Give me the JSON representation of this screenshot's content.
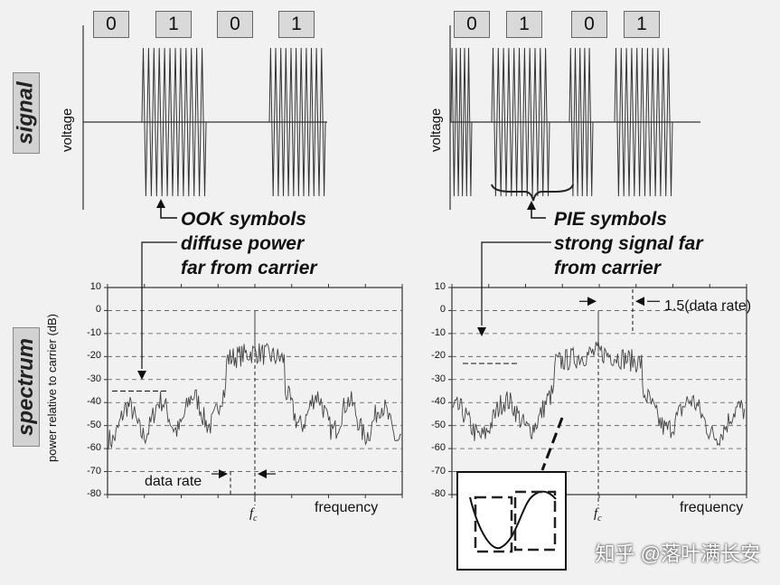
{
  "row_labels": {
    "signal": "signal",
    "spectrum": "spectrum"
  },
  "signal_panels": [
    {
      "bits": [
        "0",
        "1",
        "0",
        "1"
      ],
      "ylabel": "voltage",
      "callout": [
        "OOK symbols",
        "diffuse power",
        "far from carrier"
      ]
    },
    {
      "bits": [
        "0",
        "1",
        "0",
        "1"
      ],
      "ylabel": "voltage",
      "callout": [
        "PIE symbols",
        "strong signal far",
        "from carrier"
      ]
    }
  ],
  "spectrum_panels": [
    {
      "ylabel": "power relative to carrier (dB)",
      "xlabel": "frequency",
      "carrier_label": "f",
      "carrier_sub": "c",
      "annotation": "data rate"
    },
    {
      "ylabel": "",
      "xlabel": "frequency",
      "carrier_label": "f",
      "carrier_sub": "c",
      "annotation": "1.5(data rate)"
    }
  ],
  "y_ticks": [
    "10",
    "0",
    "-10",
    "-20",
    "-30",
    "-40",
    "-50",
    "-60",
    "-70",
    "-80"
  ],
  "chart_data": {
    "type": "line",
    "ylabel": "power relative to carrier (dB)",
    "xlabel": "frequency",
    "ylim": [
      -80,
      10
    ],
    "grid": true
  },
  "watermark": "知乎 @落叶满长安"
}
